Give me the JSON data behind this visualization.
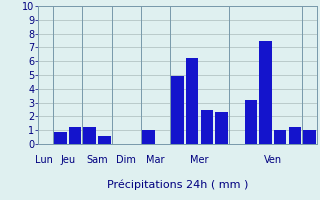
{
  "bars": [
    {
      "x": 0,
      "height": 0.0
    },
    {
      "x": 1,
      "height": 0.9
    },
    {
      "x": 2,
      "height": 1.2
    },
    {
      "x": 3,
      "height": 1.2
    },
    {
      "x": 4,
      "height": 0.6
    },
    {
      "x": 5,
      "height": 0.0
    },
    {
      "x": 6,
      "height": 0.0
    },
    {
      "x": 7,
      "height": 1.0
    },
    {
      "x": 8,
      "height": 0.0
    },
    {
      "x": 9,
      "height": 4.9
    },
    {
      "x": 10,
      "height": 6.2
    },
    {
      "x": 11,
      "height": 2.5
    },
    {
      "x": 12,
      "height": 2.3
    },
    {
      "x": 13,
      "height": 0.0
    },
    {
      "x": 14,
      "height": 3.2
    },
    {
      "x": 15,
      "height": 7.5
    },
    {
      "x": 16,
      "height": 1.0
    },
    {
      "x": 17,
      "height": 1.2
    },
    {
      "x": 18,
      "height": 1.0
    }
  ],
  "day_label_positions": [
    {
      "label": "Lun",
      "x": -0.1
    },
    {
      "label": "Jeu",
      "x": 1.5
    },
    {
      "label": "Sam",
      "x": 3.5
    },
    {
      "label": "Dim",
      "x": 5.5
    },
    {
      "label": "Mar",
      "x": 7.5
    },
    {
      "label": "Mer",
      "x": 10.5
    },
    {
      "label": "Ven",
      "x": 15.5
    }
  ],
  "day_boundaries": [
    0.5,
    2.5,
    4.5,
    6.5,
    8.5,
    12.5,
    17.5
  ],
  "bar_color": "#1414cc",
  "bg_color": "#dff0f0",
  "grid_color": "#aabcbc",
  "text_color": "#000080",
  "xlabel": "Précipitations 24h ( mm )",
  "ylim": [
    0,
    10
  ],
  "xlim": [
    -0.5,
    18.5
  ],
  "yticks": [
    0,
    1,
    2,
    3,
    4,
    5,
    6,
    7,
    8,
    9,
    10
  ]
}
